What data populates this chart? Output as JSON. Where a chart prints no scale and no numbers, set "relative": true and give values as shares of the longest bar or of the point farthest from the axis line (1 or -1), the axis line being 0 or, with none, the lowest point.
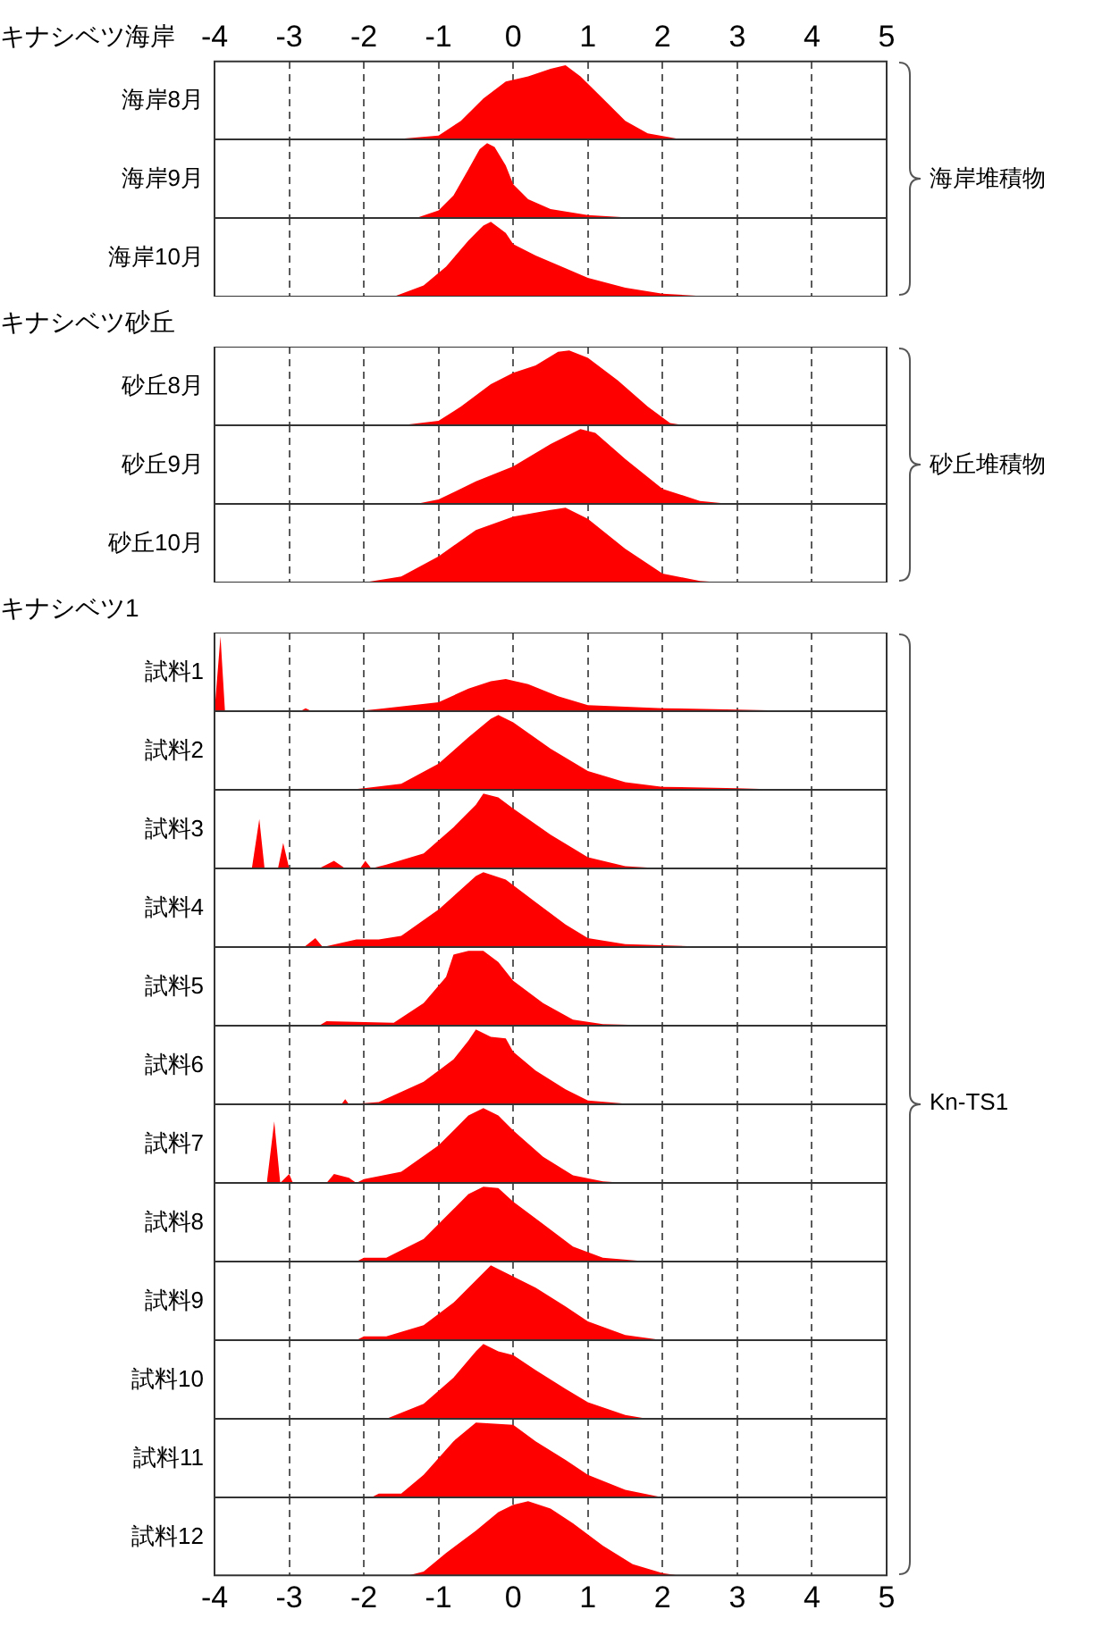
{
  "chart_data": [
    {
      "type": "area",
      "title": "キナシベツ海岸",
      "ylabel": "海岸8月",
      "annotations": [
        "海岸堆積物"
      ],
      "relative": true,
      "color": "#ff0000",
      "grid": "x",
      "tick_labels": "x",
      "xlim": [
        -4,
        5
      ],
      "xticks": [
        -4,
        -3,
        -2,
        -1,
        0,
        1,
        2,
        3,
        4,
        5
      ],
      "x": [
        -1.6,
        -1,
        -0.7,
        -0.4,
        -0.1,
        0.2,
        0.5,
        0.7,
        0.9,
        1.2,
        1.5,
        1.8,
        2.2,
        2.5
      ],
      "values": [
        0,
        0.05,
        0.25,
        0.55,
        0.78,
        0.85,
        0.95,
        1,
        0.85,
        0.55,
        0.25,
        0.08,
        0.01,
        0
      ]
    },
    {
      "type": "area",
      "ylabel": "海岸9月",
      "relative": true,
      "color": "#ff0000",
      "grid": "x",
      "tick_labels": false,
      "xlim": [
        -4,
        5
      ],
      "xticks": [
        -4,
        -3,
        -2,
        -1,
        0,
        1,
        2,
        3,
        4,
        5
      ],
      "x": [
        -1.3,
        -1,
        -0.8,
        -0.6,
        -0.45,
        -0.35,
        -0.25,
        -0.1,
        0,
        0.2,
        0.5,
        1,
        1.5,
        2
      ],
      "values": [
        0,
        0.1,
        0.3,
        0.65,
        0.92,
        1,
        0.95,
        0.7,
        0.45,
        0.25,
        0.12,
        0.04,
        0.01,
        0
      ]
    },
    {
      "type": "area",
      "ylabel": "海岸10月",
      "relative": true,
      "color": "#ff0000",
      "grid": "x",
      "tick_labels": false,
      "xlim": [
        -4,
        5
      ],
      "xticks": [
        -4,
        -3,
        -2,
        -1,
        0,
        1,
        2,
        3,
        4,
        5
      ],
      "x": [
        -1.6,
        -1.2,
        -0.9,
        -0.6,
        -0.4,
        -0.3,
        -0.1,
        0,
        0.3,
        0.7,
        1,
        1.5,
        2,
        2.5,
        3
      ],
      "values": [
        0,
        0.15,
        0.4,
        0.75,
        0.95,
        1,
        0.85,
        0.7,
        0.55,
        0.38,
        0.25,
        0.12,
        0.04,
        0.01,
        0
      ]
    },
    {
      "type": "area",
      "title": "キナシベツ砂丘",
      "ylabel": "砂丘8月",
      "annotations": [
        "砂丘堆積物"
      ],
      "relative": true,
      "color": "#ff0000",
      "grid": "x",
      "tick_labels": false,
      "xlim": [
        -4,
        5
      ],
      "xticks": [
        -4,
        -3,
        -2,
        -1,
        0,
        1,
        2,
        3,
        4,
        5
      ],
      "x": [
        -1.5,
        -1,
        -0.7,
        -0.3,
        0,
        0.3,
        0.6,
        0.75,
        1,
        1.4,
        1.8,
        2.1,
        2.3
      ],
      "values": [
        0,
        0.06,
        0.25,
        0.55,
        0.7,
        0.8,
        0.98,
        1,
        0.9,
        0.6,
        0.25,
        0.03,
        0
      ]
    },
    {
      "type": "area",
      "ylabel": "砂丘9月",
      "relative": true,
      "color": "#ff0000",
      "grid": "x",
      "tick_labels": false,
      "xlim": [
        -4,
        5
      ],
      "xticks": [
        -4,
        -3,
        -2,
        -1,
        0,
        1,
        2,
        3,
        4,
        5
      ],
      "x": [
        -1.3,
        -1,
        -0.5,
        0,
        0.5,
        0.9,
        1.1,
        1.5,
        2,
        2.5,
        2.9
      ],
      "values": [
        0,
        0.06,
        0.3,
        0.5,
        0.8,
        1,
        0.95,
        0.6,
        0.2,
        0.04,
        0
      ]
    },
    {
      "type": "area",
      "ylabel": "砂丘10月",
      "relative": true,
      "color": "#ff0000",
      "grid": "x",
      "tick_labels": false,
      "xlim": [
        -4,
        5
      ],
      "xticks": [
        -4,
        -3,
        -2,
        -1,
        0,
        1,
        2,
        3,
        4,
        5
      ],
      "x": [
        -2,
        -1.5,
        -1,
        -0.5,
        0,
        0.5,
        0.7,
        1,
        1.5,
        2,
        2.5,
        2.8
      ],
      "values": [
        0,
        0.08,
        0.35,
        0.7,
        0.88,
        0.97,
        1,
        0.85,
        0.45,
        0.12,
        0.02,
        0
      ]
    },
    {
      "type": "area",
      "title": "キナシベツ1",
      "ylabel": "試料1",
      "annotations": [
        "Kn-TS1"
      ],
      "relative": true,
      "color": "#ff0000",
      "grid": "x",
      "tick_labels": false,
      "xlim": [
        -4,
        5
      ],
      "xticks": [
        -4,
        -3,
        -2,
        -1,
        0,
        1,
        2,
        3,
        4,
        5
      ],
      "x": [
        -4,
        -3.92,
        -3.86,
        -2.85,
        -2.78,
        -2.7,
        -2.1,
        -1.8,
        -1,
        -0.6,
        -0.3,
        -0.1,
        0.2,
        0.6,
        1,
        2,
        3,
        3.7,
        4
      ],
      "values": [
        0,
        1,
        0,
        0,
        0.04,
        0,
        0,
        0.03,
        0.12,
        0.3,
        0.4,
        0.43,
        0.36,
        0.2,
        0.08,
        0.04,
        0.02,
        0.005,
        0
      ]
    },
    {
      "type": "area",
      "ylabel": "試料2",
      "relative": true,
      "color": "#ff0000",
      "grid": "x",
      "tick_labels": false,
      "xlim": [
        -4,
        5
      ],
      "xticks": [
        -4,
        -3,
        -2,
        -1,
        0,
        1,
        2,
        3,
        4,
        5
      ],
      "x": [
        -2.2,
        -2,
        -1.5,
        -1,
        -0.6,
        -0.3,
        -0.2,
        0,
        0.5,
        1,
        1.5,
        2,
        3,
        3.7
      ],
      "values": [
        0,
        0.02,
        0.08,
        0.35,
        0.7,
        0.95,
        1,
        0.9,
        0.55,
        0.25,
        0.1,
        0.04,
        0.02,
        0
      ]
    },
    {
      "type": "area",
      "ylabel": "試料3",
      "relative": true,
      "color": "#ff0000",
      "grid": "x",
      "tick_labels": false,
      "xlim": [
        -4,
        5
      ],
      "xticks": [
        -4,
        -3,
        -2,
        -1,
        0,
        1,
        2,
        3,
        4,
        5
      ],
      "x": [
        -3.5,
        -3.4,
        -3.33,
        -3.15,
        -3.08,
        -3,
        -2.6,
        -2.4,
        -2.25,
        -2.05,
        -1.98,
        -1.9,
        -1.7,
        -1.2,
        -0.8,
        -0.5,
        -0.4,
        -0.2,
        0,
        0.5,
        1,
        1.5,
        2
      ],
      "values": [
        0,
        0.66,
        0,
        0,
        0.34,
        0,
        0,
        0.1,
        0,
        0,
        0.1,
        0,
        0.05,
        0.2,
        0.55,
        0.85,
        1,
        0.95,
        0.8,
        0.45,
        0.15,
        0.03,
        0
      ]
    },
    {
      "type": "area",
      "ylabel": "試料4",
      "relative": true,
      "color": "#ff0000",
      "grid": "x",
      "tick_labels": false,
      "xlim": [
        -4,
        5
      ],
      "xticks": [
        -4,
        -3,
        -2,
        -1,
        0,
        1,
        2,
        3,
        4,
        5
      ],
      "x": [
        -2.8,
        -2.65,
        -2.55,
        -2.1,
        -1.8,
        -1.5,
        -1,
        -0.5,
        -0.4,
        -0.1,
        0.3,
        0.7,
        1,
        1.5,
        2.7
      ],
      "values": [
        0,
        0.12,
        0,
        0.1,
        0.1,
        0.15,
        0.5,
        0.95,
        1,
        0.9,
        0.6,
        0.3,
        0.12,
        0.04,
        0
      ]
    },
    {
      "type": "area",
      "ylabel": "試料5",
      "relative": true,
      "color": "#ff0000",
      "grid": "x",
      "tick_labels": false,
      "xlim": [
        -4,
        5
      ],
      "xticks": [
        -4,
        -3,
        -2,
        -1,
        0,
        1,
        2,
        3,
        4,
        5
      ],
      "x": [
        -2.6,
        -2.5,
        -1.6,
        -1.2,
        -0.9,
        -0.8,
        -0.6,
        -0.4,
        -0.2,
        0,
        0.4,
        0.8,
        1.2,
        2
      ],
      "values": [
        0,
        0.06,
        0.04,
        0.3,
        0.65,
        0.95,
        1,
        1,
        0.85,
        0.6,
        0.3,
        0.08,
        0.02,
        0
      ]
    },
    {
      "type": "area",
      "ylabel": "試料6",
      "relative": true,
      "color": "#ff0000",
      "grid": "x",
      "tick_labels": false,
      "xlim": [
        -4,
        5
      ],
      "xticks": [
        -4,
        -3,
        -2,
        -1,
        0,
        1,
        2,
        3,
        4,
        5
      ],
      "x": [
        -2.3,
        -2.25,
        -2.2,
        -1.8,
        -1.2,
        -0.8,
        -0.6,
        -0.5,
        -0.3,
        -0.1,
        0,
        0.3,
        0.7,
        1,
        1.5,
        2
      ],
      "values": [
        0,
        0.07,
        0,
        0.03,
        0.3,
        0.6,
        0.85,
        1,
        0.9,
        0.88,
        0.7,
        0.45,
        0.2,
        0.05,
        0.01,
        0
      ]
    },
    {
      "type": "area",
      "ylabel": "試料7",
      "relative": true,
      "color": "#ff0000",
      "grid": "x",
      "tick_labels": false,
      "xlim": [
        -4,
        5
      ],
      "xticks": [
        -4,
        -3,
        -2,
        -1,
        0,
        1,
        2,
        3,
        4,
        5
      ],
      "x": [
        -3.3,
        -3.2,
        -3.12,
        -3,
        -2.95,
        -2.5,
        -2.4,
        -2.2,
        -2.1,
        -2,
        -1.5,
        -1,
        -0.6,
        -0.4,
        -0.2,
        0,
        0.4,
        0.8,
        1.2,
        1.5
      ],
      "values": [
        0,
        0.82,
        0,
        0.12,
        0,
        0,
        0.12,
        0.07,
        0,
        0.05,
        0.15,
        0.5,
        0.9,
        1,
        0.9,
        0.7,
        0.35,
        0.1,
        0.02,
        0
      ]
    },
    {
      "type": "area",
      "ylabel": "試料8",
      "relative": true,
      "color": "#ff0000",
      "grid": "x",
      "tick_labels": false,
      "xlim": [
        -4,
        5
      ],
      "xticks": [
        -4,
        -3,
        -2,
        -1,
        0,
        1,
        2,
        3,
        4,
        5
      ],
      "x": [
        -2.1,
        -2,
        -1.7,
        -1.2,
        -0.8,
        -0.6,
        -0.4,
        -0.2,
        0,
        0.4,
        0.8,
        1.2,
        1.7,
        2
      ],
      "values": [
        0,
        0.05,
        0.05,
        0.3,
        0.7,
        0.9,
        1,
        0.98,
        0.8,
        0.5,
        0.2,
        0.05,
        0.01,
        0
      ]
    },
    {
      "type": "area",
      "ylabel": "試料9",
      "relative": true,
      "color": "#ff0000",
      "grid": "x",
      "tick_labels": false,
      "xlim": [
        -4,
        5
      ],
      "xticks": [
        -4,
        -3,
        -2,
        -1,
        0,
        1,
        2,
        3,
        4,
        5
      ],
      "x": [
        -2.1,
        -2,
        -1.7,
        -1.2,
        -0.8,
        -0.5,
        -0.3,
        0,
        0.3,
        0.7,
        1,
        1.5,
        2
      ],
      "values": [
        0,
        0.05,
        0.05,
        0.2,
        0.5,
        0.8,
        1,
        0.85,
        0.7,
        0.45,
        0.25,
        0.07,
        0
      ]
    },
    {
      "type": "area",
      "ylabel": "試料10",
      "relative": true,
      "color": "#ff0000",
      "grid": "x",
      "tick_labels": false,
      "xlim": [
        -4,
        5
      ],
      "xticks": [
        -4,
        -3,
        -2,
        -1,
        0,
        1,
        2,
        3,
        4,
        5
      ],
      "x": [
        -1.7,
        -1.2,
        -0.8,
        -0.5,
        -0.4,
        -0.2,
        0,
        0.3,
        0.7,
        1,
        1.5,
        1.8
      ],
      "values": [
        0,
        0.2,
        0.55,
        0.9,
        1,
        0.9,
        0.85,
        0.65,
        0.4,
        0.22,
        0.05,
        0
      ]
    },
    {
      "type": "area",
      "ylabel": "試料11",
      "relative": true,
      "color": "#ff0000",
      "grid": "x",
      "tick_labels": false,
      "xlim": [
        -4,
        5
      ],
      "xticks": [
        -4,
        -3,
        -2,
        -1,
        0,
        1,
        2,
        3,
        4,
        5
      ],
      "x": [
        -1.9,
        -1.8,
        -1.5,
        -1.2,
        -0.8,
        -0.5,
        -0.2,
        0,
        0.3,
        0.7,
        1,
        1.5,
        2
      ],
      "values": [
        0,
        0.05,
        0.05,
        0.3,
        0.75,
        1,
        0.98,
        0.97,
        0.75,
        0.5,
        0.3,
        0.1,
        0
      ]
    },
    {
      "type": "area",
      "ylabel": "試料12",
      "relative": true,
      "color": "#ff0000",
      "grid": "x",
      "tick_labels": "x",
      "xlim": [
        -4,
        5
      ],
      "xticks": [
        -4,
        -3,
        -2,
        -1,
        0,
        1,
        2,
        3,
        4,
        5
      ],
      "x": [
        -1.4,
        -1.2,
        -0.9,
        -0.5,
        -0.2,
        0,
        0.2,
        0.5,
        0.8,
        1.2,
        1.6,
        2,
        2.2
      ],
      "values": [
        0,
        0.05,
        0.3,
        0.6,
        0.85,
        0.95,
        1,
        0.9,
        0.7,
        0.4,
        0.15,
        0.03,
        0
      ]
    }
  ]
}
